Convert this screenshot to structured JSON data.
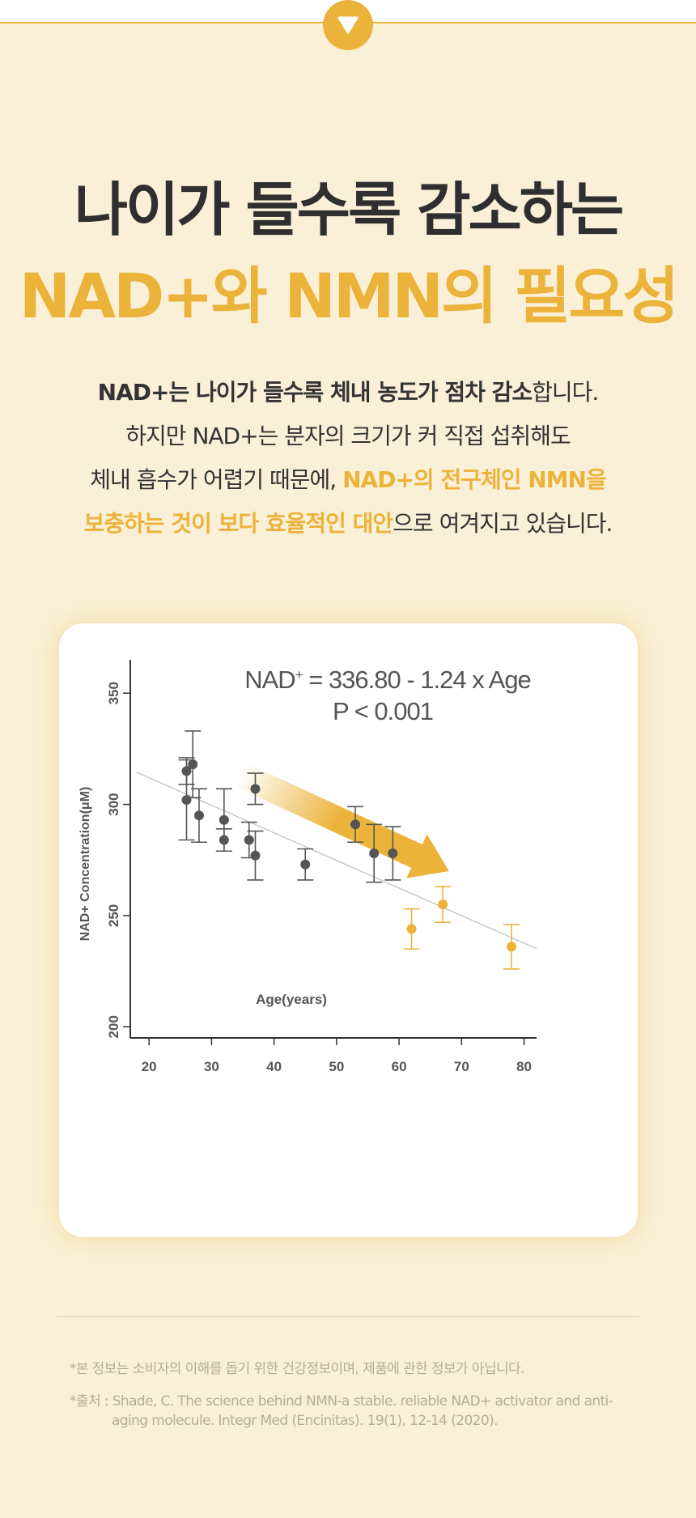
{
  "headline": {
    "line1": "나이가 들수록 감소하는",
    "line2": "NAD+와 NMN의 필요성"
  },
  "description": {
    "l1_bold": "NAD+는 나이가 들수록 체내 농도가 점차 감소",
    "l1_rest": "합니다.",
    "l2": "하지만 NAD+는 분자의 크기가 커 직접 섭취해도",
    "l3_plain": "체내 흡수가 어렵기 때문에, ",
    "l3_accent": "NAD+의 전구체인 NMN을",
    "l4_accent": "보충하는 것이 보다 효율적인 대안",
    "l4_rest": "으로 여겨지고 있습니다."
  },
  "chart_data": {
    "type": "scatter",
    "equation_left": "NAD",
    "equation_sup": "+",
    "equation_right": " = 336.80 - 1.24 x Age",
    "pvalue": "P < 0.001",
    "xlabel": "Age(years)",
    "ylabel": "NAD+ Concentration(μM)",
    "xlim": [
      17,
      82
    ],
    "ylim": [
      195,
      365
    ],
    "xticks": [
      20,
      30,
      40,
      50,
      60,
      70,
      80
    ],
    "yticks": [
      200,
      250,
      300,
      350
    ],
    "regression": {
      "intercept": 336.8,
      "slope": -1.24,
      "x_from": 18,
      "x_to": 82
    },
    "trend_arrow": {
      "x_from": 28,
      "y_from": 322,
      "x_to": 68,
      "y_to": 270
    },
    "series": [
      {
        "color": "#555555",
        "points": [
          {
            "x": 26,
            "y": 315,
            "err": 6
          },
          {
            "x": 26,
            "y": 302,
            "err": 18
          },
          {
            "x": 27,
            "y": 318,
            "err": 15
          },
          {
            "x": 28,
            "y": 295,
            "err": 12
          },
          {
            "x": 32,
            "y": 293,
            "err": 14
          },
          {
            "x": 32,
            "y": 284,
            "err": 5
          },
          {
            "x": 36,
            "y": 284,
            "err": 8
          },
          {
            "x": 37,
            "y": 307,
            "err": 7
          },
          {
            "x": 37,
            "y": 277,
            "err": 11
          },
          {
            "x": 45,
            "y": 273,
            "err": 7
          },
          {
            "x": 53,
            "y": 291,
            "err": 8
          },
          {
            "x": 56,
            "y": 278,
            "err": 13
          },
          {
            "x": 59,
            "y": 278,
            "err": 12
          }
        ]
      },
      {
        "color": "#ecb33b",
        "points": [
          {
            "x": 62,
            "y": 244,
            "err": 9
          },
          {
            "x": 67,
            "y": 255,
            "err": 8
          },
          {
            "x": 78,
            "y": 236,
            "err": 10
          }
        ]
      }
    ]
  },
  "footnotes": {
    "line1": "*본 정보는 소비자의 이해를 돕기 위한 건강정보이며, 제품에 관한 정보가 아닙니다.",
    "line2": "*출처 : Shade, C. The science behind NMN-a stable. reliable NAD+ activator and anti-",
    "line3": "aging molecule. Integr Med (Encinitas). 19(1), 12-14 (2020)."
  }
}
